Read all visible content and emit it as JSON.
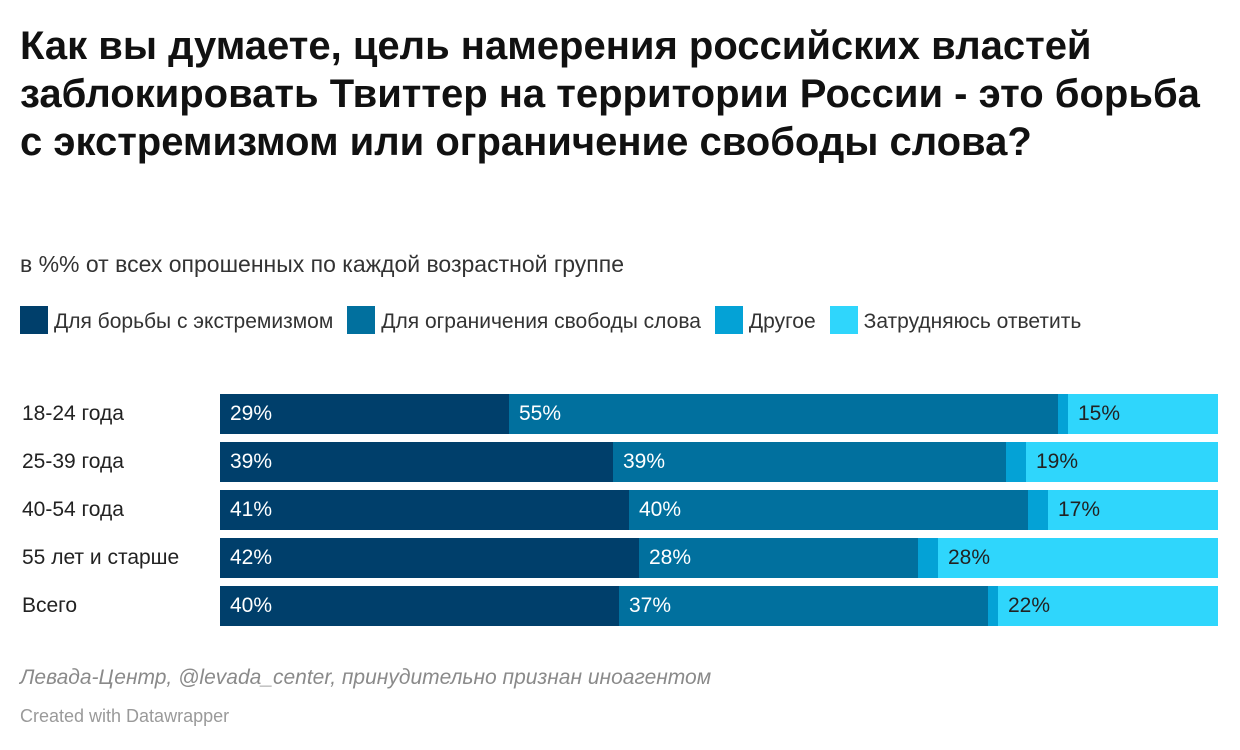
{
  "chart_data": {
    "type": "bar",
    "orientation": "horizontal",
    "stacked": true,
    "title": "Как вы думаете, цель намерения российских властей заблокировать Твиттер на территории России - это борьба с экстремизмом или ограничение свободы слова?",
    "subtitle": "в %% от всех опрошенных по каждой возрастной группе",
    "categories": [
      "18-24 года",
      "25-39 года",
      "40-54 года",
      "55 лет и старше",
      "Всего"
    ],
    "series": [
      {
        "name": "Для борьбы с экстремизмом",
        "color": "#003f6b",
        "values": [
          29,
          39,
          41,
          42,
          40
        ],
        "labels": [
          "29%",
          "39%",
          "41%",
          "42%",
          "40%"
        ]
      },
      {
        "name": "Для ограничения свободы слова",
        "color": "#01709e",
        "values": [
          55,
          39,
          40,
          28,
          37
        ],
        "labels": [
          "55%",
          "39%",
          "40%",
          "28%",
          "37%"
        ]
      },
      {
        "name": "Другое",
        "color": "#04a2d6",
        "values": [
          1,
          2,
          2,
          2,
          1
        ],
        "labels": [
          "",
          "",
          "",
          "",
          ""
        ]
      },
      {
        "name": "Затрудняюсь ответить",
        "color": "#2fd6fc",
        "values": [
          15,
          19,
          17,
          28,
          22
        ],
        "labels": [
          "15%",
          "19%",
          "17%",
          "28%",
          "22%"
        ]
      }
    ],
    "xlim": [
      0,
      100
    ],
    "legend_position": "top",
    "grid": false
  },
  "footer": {
    "source": "Левада-Центр, @levada_center, принудительно признан иноагентом",
    "credit": "Created with Datawrapper"
  }
}
